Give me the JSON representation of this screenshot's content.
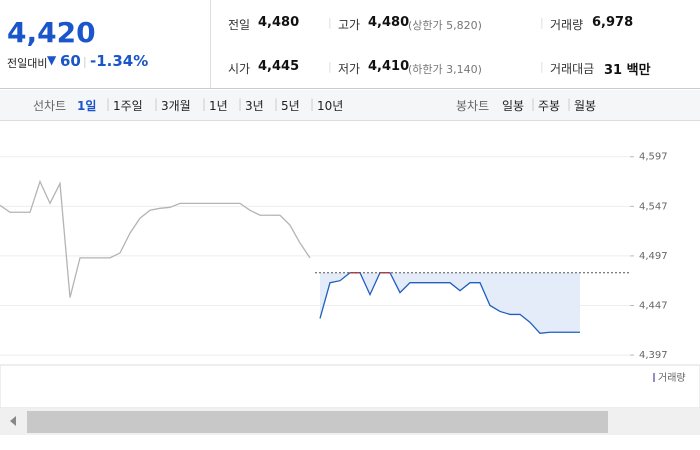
{
  "header": {
    "price": "4,420",
    "change_label": "전일대비",
    "change": "60",
    "change_pct": "-1.34%"
  },
  "stats": [
    {
      "label": "전일",
      "value": "4,480"
    },
    {
      "label": "고가",
      "value": "4,480",
      "extra": "(상한가 5,820)"
    },
    {
      "label": "거래량",
      "value": "6,978"
    },
    {
      "label": "시가",
      "value": "4,445"
    },
    {
      "label": "저가",
      "value": "4,410",
      "extra": "(하한가 3,140)"
    },
    {
      "label": "거래대금",
      "value": "31 백만"
    }
  ],
  "tabs": {
    "line_label": "선차트",
    "line": [
      "1일",
      "1주일",
      "3개월",
      "1년",
      "3년",
      "5년",
      "10년"
    ],
    "candle_label": "봉차트",
    "candle": [
      "일봉",
      "주봉",
      "월봉"
    ]
  },
  "chart_data": {
    "type": "line",
    "ylim": [
      4387,
      4629
    ],
    "yticks": [
      {
        "value": 4397,
        "label": "4,397"
      },
      {
        "value": 4447,
        "label": "4,447"
      },
      {
        "value": 4497,
        "label": "4,497"
      },
      {
        "value": 4547,
        "label": "4,547"
      },
      {
        "value": 4597,
        "label": "4,597"
      }
    ],
    "reference": 4480,
    "series": [
      {
        "color": "#b4b4b4",
        "values": [
          4548,
          4541,
          4541,
          4541,
          4572,
          4550,
          4570,
          4455,
          4495,
          4495,
          4495,
          4495,
          4500,
          4520,
          4535,
          4543,
          4545,
          4546,
          4550,
          4550,
          4550,
          4550,
          4550,
          4550,
          4550,
          4543,
          4538,
          4538,
          4538,
          4528,
          4510,
          4495,
          null,
          null,
          null,
          null,
          null,
          null,
          null,
          null,
          null,
          null,
          null,
          null,
          null,
          null,
          null,
          null,
          null,
          null,
          null,
          null,
          null,
          null,
          null,
          null,
          null,
          null,
          null
        ]
      },
      {
        "color": "#1f5fbf",
        "values": [
          null,
          null,
          null,
          null,
          null,
          null,
          null,
          null,
          null,
          null,
          null,
          null,
          null,
          null,
          null,
          null,
          null,
          null,
          null,
          null,
          null,
          null,
          null,
          null,
          null,
          null,
          null,
          null,
          null,
          null,
          null,
          null,
          4434,
          4470,
          4472,
          4480,
          4480,
          4458,
          4480,
          4480,
          4460,
          4470,
          4470,
          4470,
          4470,
          4470,
          4462,
          4470,
          4470,
          4447,
          4441,
          4438,
          4438,
          4430,
          4419,
          4420,
          4420,
          4420,
          4420
        ]
      }
    ],
    "up_color": "#e03030",
    "volume_legend": "거래량"
  }
}
